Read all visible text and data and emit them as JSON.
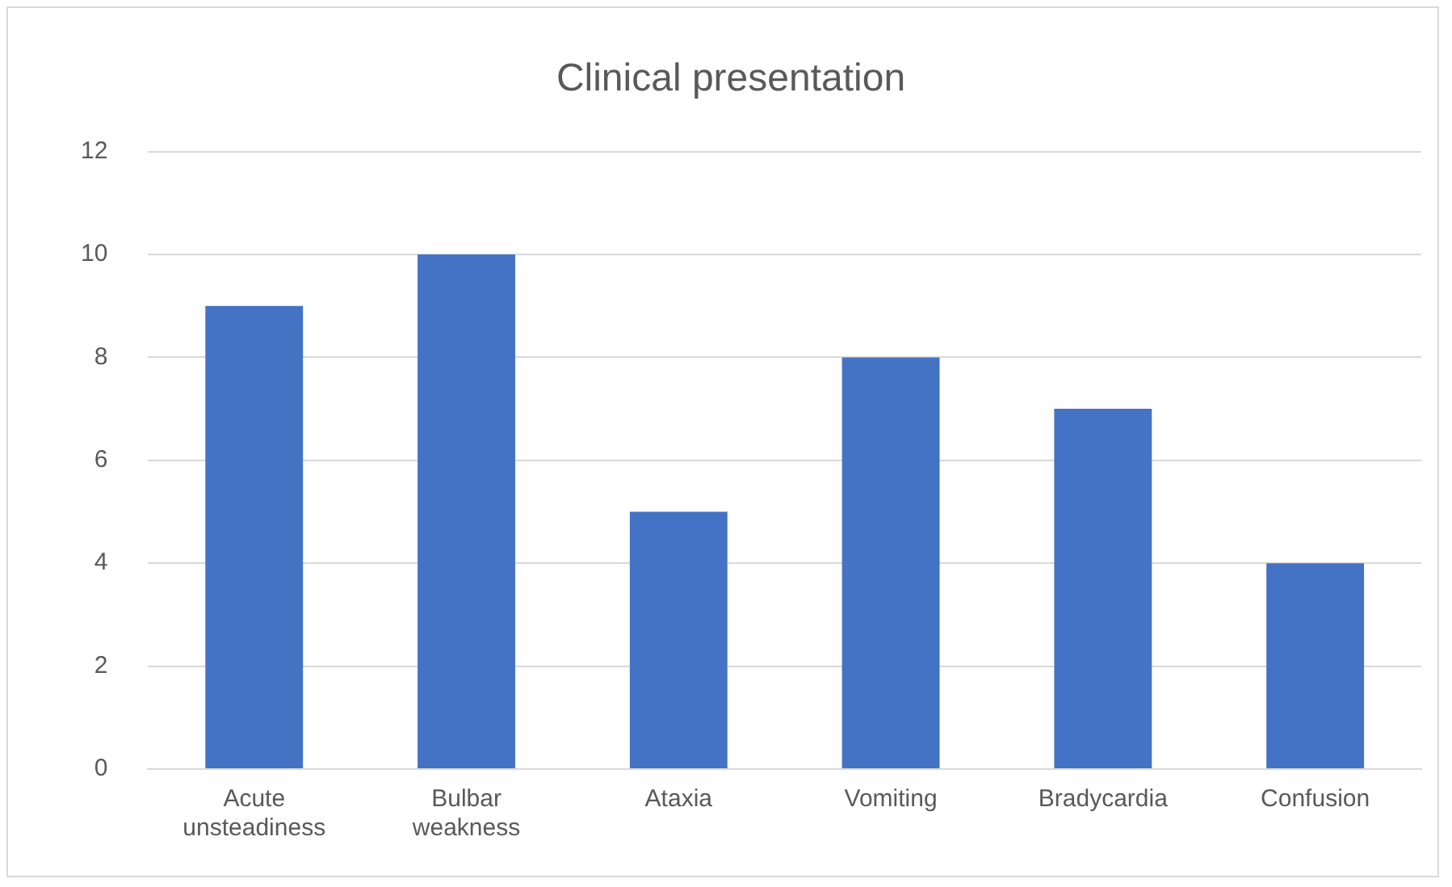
{
  "chart_data": {
    "type": "bar",
    "title": "Clinical presentation",
    "categories": [
      "Acute unsteadiness",
      "Bulbar weakness",
      "Ataxia",
      "Vomiting",
      "Bradycardia",
      "Confusion"
    ],
    "values": [
      9,
      10,
      5,
      8,
      7,
      4
    ],
    "color": "#4472c4",
    "ylim": [
      0,
      12
    ],
    "yticks": [
      0,
      2,
      4,
      6,
      8,
      10,
      12
    ],
    "grid": "y",
    "legend": false
  }
}
